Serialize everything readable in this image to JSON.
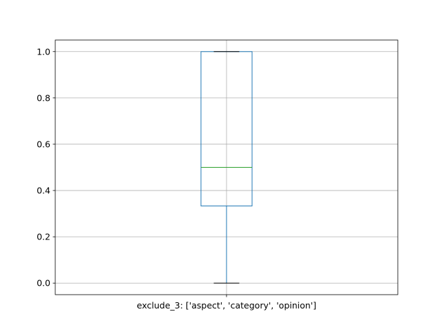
{
  "chart_data": {
    "type": "box",
    "title": "",
    "xlabel": "",
    "ylabel": "",
    "categories": [
      "exclude_3: ['aspect', 'category', 'opinion']"
    ],
    "boxes": [
      {
        "category": "exclude_3: ['aspect', 'category', 'opinion']",
        "whisker_low": 0.0,
        "q1": 0.3333,
        "median": 0.5,
        "q3": 1.0,
        "whisker_high": 1.0
      }
    ],
    "ylim": [
      -0.05,
      1.05
    ],
    "yticks": [
      0.0,
      0.2,
      0.4,
      0.6,
      0.8,
      1.0
    ],
    "ytick_labels": [
      "0.0",
      "0.2",
      "0.4",
      "0.6",
      "0.8",
      "1.0"
    ],
    "grid": true,
    "colors": {
      "box": "#1f77b4",
      "median": "#2ca02c",
      "caps": "#000000",
      "grid": "#b0b0b0",
      "axes": "#000000"
    }
  }
}
